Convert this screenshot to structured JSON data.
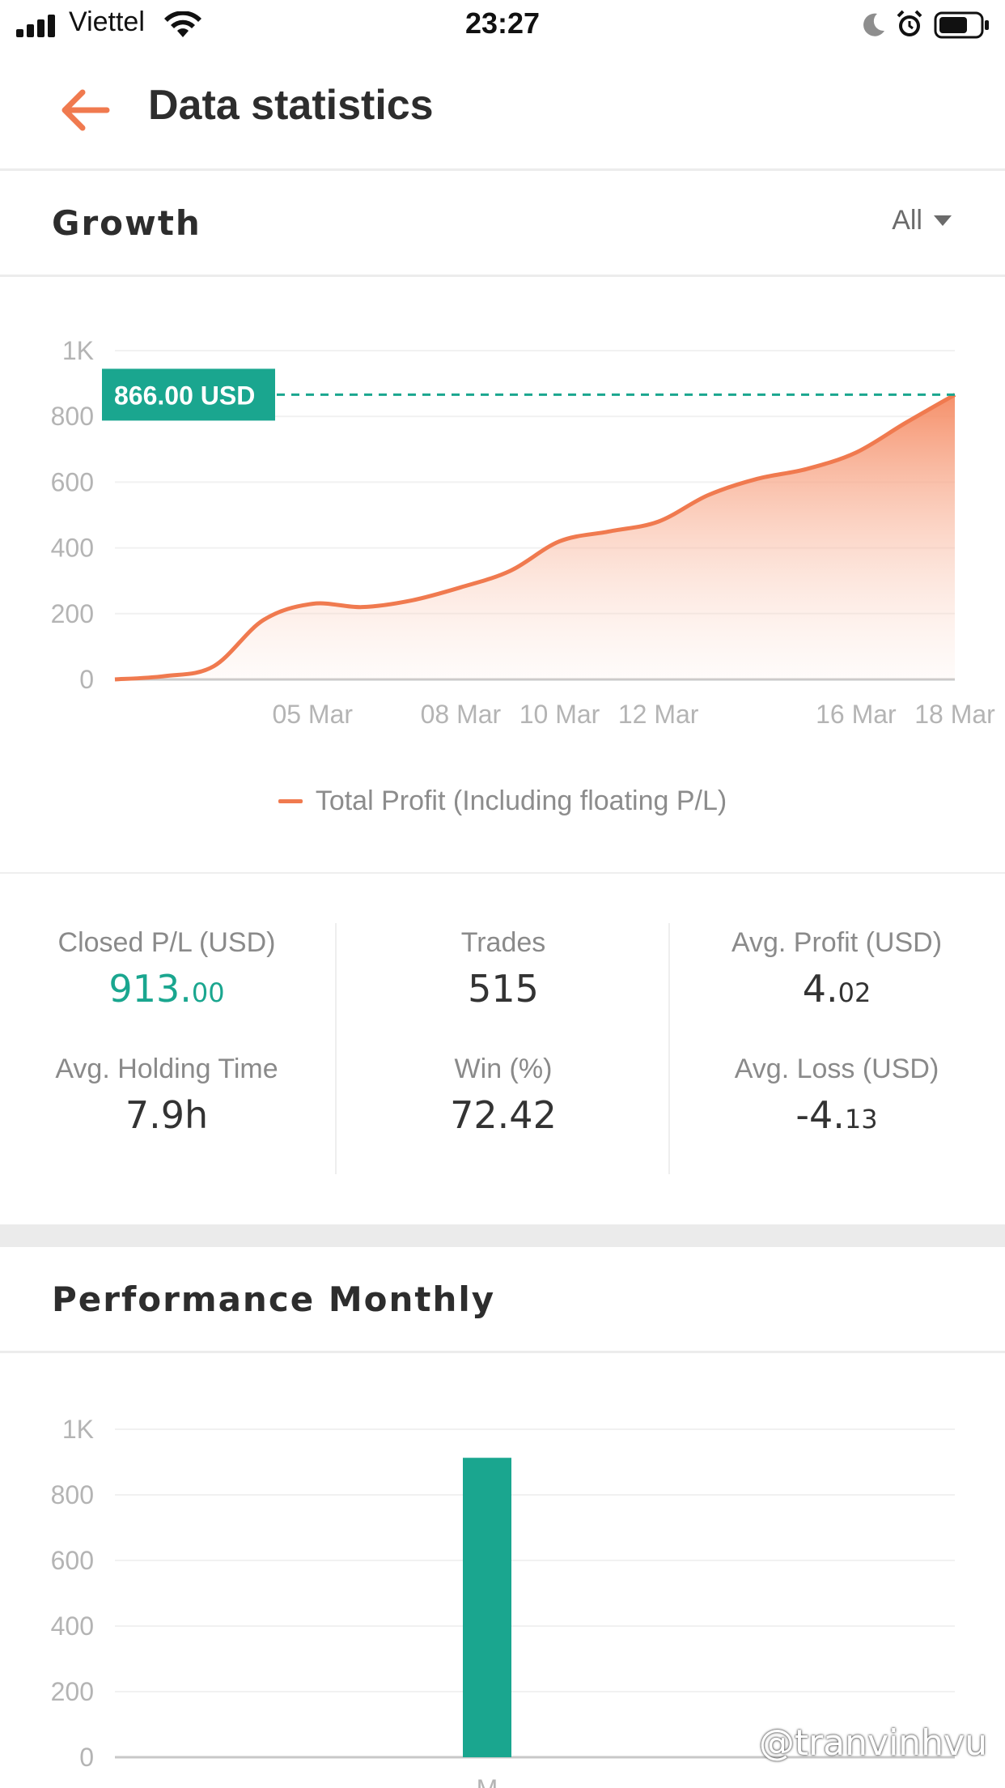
{
  "status_bar": {
    "carrier": "Viettel",
    "time": "23:27"
  },
  "header": {
    "title": "Data statistics",
    "back_icon": "arrow-left-icon",
    "accent_color": "#f07a4f"
  },
  "growth": {
    "title": "Growth",
    "filter_label": "All",
    "current_value_label": "866.00 USD",
    "legend_label": "Total Profit (Including floating P/L)",
    "line_color": "#f07a4f",
    "marker_color": "#1aa68f",
    "chart_data": {
      "type": "area",
      "title": "",
      "xlabel": "",
      "ylabel": "",
      "ylim": [
        0,
        1000
      ],
      "yticks": [
        "0",
        "200",
        "400",
        "600",
        "800",
        "1K"
      ],
      "xticks": [
        "05 Mar",
        "08 Mar",
        "10 Mar",
        "12 Mar",
        "16 Mar",
        "18 Mar"
      ],
      "series": [
        {
          "name": "Total Profit (Including floating P/L)",
          "points": [
            {
              "x": "01 Mar",
              "y": 0
            },
            {
              "x": "02 Mar",
              "y": 10
            },
            {
              "x": "03 Mar",
              "y": 40
            },
            {
              "x": "04 Mar",
              "y": 180
            },
            {
              "x": "05 Mar",
              "y": 230
            },
            {
              "x": "06 Mar",
              "y": 220
            },
            {
              "x": "07 Mar",
              "y": 240
            },
            {
              "x": "08 Mar",
              "y": 280
            },
            {
              "x": "09 Mar",
              "y": 330
            },
            {
              "x": "10 Mar",
              "y": 420
            },
            {
              "x": "11 Mar",
              "y": 450
            },
            {
              "x": "12 Mar",
              "y": 480
            },
            {
              "x": "13 Mar",
              "y": 560
            },
            {
              "x": "14 Mar",
              "y": 610
            },
            {
              "x": "15 Mar",
              "y": 640
            },
            {
              "x": "16 Mar",
              "y": 690
            },
            {
              "x": "17 Mar",
              "y": 780
            },
            {
              "x": "18 Mar",
              "y": 866
            }
          ]
        }
      ]
    }
  },
  "stats": {
    "closed_pl": {
      "label": "Closed P/L (USD)",
      "int": "913.",
      "dec": "00"
    },
    "trades": {
      "label": "Trades",
      "value": "515"
    },
    "avg_profit": {
      "label": "Avg. Profit (USD)",
      "int": "4.",
      "dec": "02"
    },
    "avg_holding": {
      "label": "Avg. Holding Time",
      "value": "7.9h"
    },
    "win": {
      "label": "Win (%)",
      "value": "72.42"
    },
    "avg_loss": {
      "label": "Avg. Loss (USD)",
      "int": "-4.",
      "dec": "13"
    }
  },
  "performance": {
    "title": "Performance Monthly",
    "bar_color": "#1aa68f",
    "chart_data": {
      "type": "bar",
      "title": "",
      "xlabel": "",
      "ylabel": "",
      "ylim": [
        0,
        1000
      ],
      "yticks": [
        "0",
        "200",
        "400",
        "600",
        "800",
        "1K"
      ],
      "categories": [
        "M"
      ],
      "values": [
        913
      ]
    }
  },
  "watermark": "@tranvinhvu"
}
